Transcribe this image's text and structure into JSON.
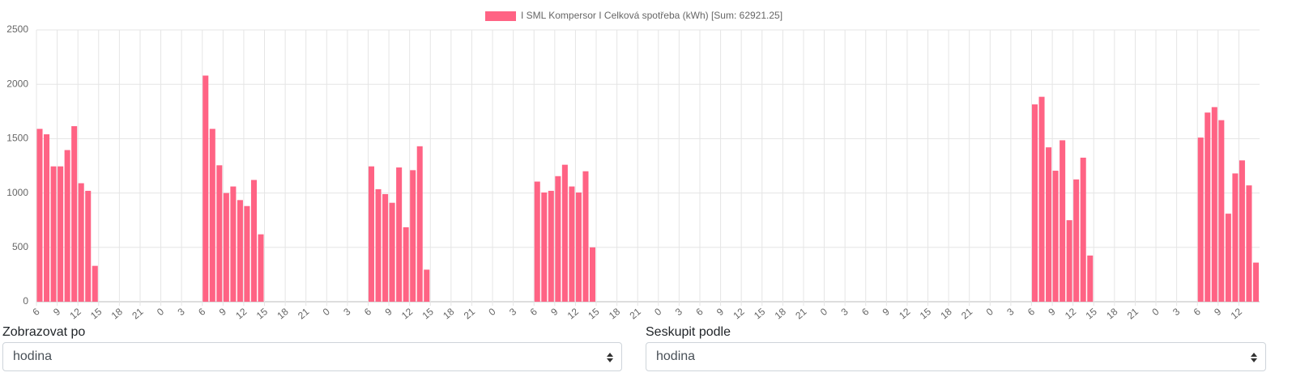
{
  "chart_data": {
    "type": "bar",
    "categories": [
      "6",
      null,
      null,
      "9",
      null,
      null,
      "12",
      null,
      null,
      "15",
      null,
      null,
      "18",
      null,
      null,
      "21",
      null,
      null,
      "0",
      null,
      null,
      "3",
      null,
      null,
      "6",
      null,
      null,
      "9",
      null,
      null,
      "12",
      null,
      null,
      "15",
      null,
      null,
      "18",
      null,
      null,
      "21",
      null,
      null,
      "0",
      null,
      null,
      "3",
      null,
      null,
      "6",
      null,
      null,
      "9",
      null,
      null,
      "12",
      null,
      null,
      "15",
      null,
      null,
      "18",
      null,
      null,
      "21",
      null,
      null,
      "0",
      null,
      null,
      "3",
      null,
      null,
      "6",
      null,
      null,
      "9",
      null,
      null,
      "12",
      null,
      null,
      "15",
      null,
      null,
      "18",
      null,
      null,
      "21",
      null,
      null,
      "0",
      null,
      null,
      "3",
      null,
      null,
      "6",
      null,
      null,
      "9",
      null,
      null,
      "12",
      null,
      null,
      "15",
      null,
      null,
      "18",
      null,
      null,
      "21",
      null,
      null,
      "0",
      null,
      null,
      "3",
      null,
      null,
      "6",
      null,
      null,
      "9",
      null,
      null,
      "12",
      null,
      null,
      "15",
      null,
      null,
      "18",
      null,
      null,
      "21",
      null,
      null,
      "0",
      null,
      null,
      "3",
      null,
      null,
      "6",
      null,
      null,
      "9",
      null,
      null,
      "12",
      null,
      null,
      "15",
      null,
      null,
      "18",
      null,
      null,
      "21",
      null,
      null,
      "0",
      null,
      null,
      "3",
      null,
      null,
      "6",
      null,
      null,
      "9",
      null,
      null,
      "12",
      null,
      null
    ],
    "series": [
      {
        "name": "I SML Kompersor I Celková spotřeba (kWh) [Sum: 62921.25]",
        "color": "#ff6384",
        "values": [
          1590,
          1540,
          1245,
          1245,
          1395,
          1615,
          1090,
          1020,
          330,
          0,
          0,
          0,
          0,
          0,
          0,
          0,
          0,
          0,
          0,
          0,
          0,
          0,
          0,
          0,
          2080,
          1590,
          1255,
          1000,
          1060,
          935,
          880,
          1120,
          620,
          0,
          0,
          0,
          0,
          0,
          0,
          0,
          0,
          0,
          0,
          0,
          0,
          0,
          0,
          0,
          1245,
          1035,
          990,
          910,
          1235,
          685,
          1210,
          1430,
          295,
          0,
          0,
          0,
          0,
          0,
          0,
          0,
          0,
          0,
          0,
          0,
          0,
          0,
          0,
          0,
          1105,
          1005,
          1020,
          1155,
          1260,
          1060,
          1005,
          1200,
          500,
          0,
          0,
          0,
          0,
          0,
          0,
          0,
          0,
          0,
          0,
          0,
          0,
          0,
          0,
          0,
          0,
          0,
          0,
          0,
          0,
          0,
          0,
          0,
          0,
          0,
          0,
          0,
          0,
          0,
          0,
          0,
          0,
          0,
          0,
          0,
          0,
          0,
          0,
          0,
          0,
          0,
          0,
          0,
          0,
          0,
          0,
          0,
          0,
          0,
          0,
          0,
          0,
          0,
          0,
          0,
          0,
          0,
          0,
          0,
          0,
          0,
          0,
          0,
          1815,
          1885,
          1420,
          1205,
          1485,
          750,
          1125,
          1325,
          425,
          0,
          0,
          0,
          0,
          0,
          0,
          0,
          0,
          0,
          0,
          0,
          0,
          0,
          0,
          0,
          1510,
          1740,
          1790,
          1670,
          810,
          1180,
          1300,
          1070,
          360
        ]
      }
    ],
    "ylim": [
      0,
      2500
    ],
    "yticks": [
      0,
      500,
      1000,
      1500,
      2000,
      2500
    ],
    "grid": true,
    "legend": "top"
  },
  "form": {
    "fields": [
      {
        "label": "Zobrazovat po",
        "value": "hodina"
      },
      {
        "label": "Seskupit podle",
        "value": "hodina"
      }
    ]
  }
}
